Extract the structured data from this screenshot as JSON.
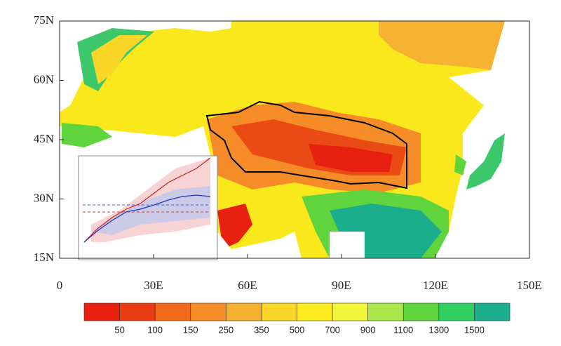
{
  "map": {
    "lat_ticks": [
      {
        "value": 75,
        "label": "75N"
      },
      {
        "value": 60,
        "label": "60N"
      },
      {
        "value": 45,
        "label": "45N"
      },
      {
        "value": 30,
        "label": "30N"
      },
      {
        "value": 15,
        "label": "15N"
      }
    ],
    "lon_ticks": [
      0,
      {
        "value": 30,
        "label": "30E"
      },
      {
        "value": 60,
        "label": "60E"
      },
      {
        "value": 90,
        "label": "90E"
      },
      {
        "value": 120,
        "label": "120E"
      },
      {
        "value": 150,
        "label": "150E"
      }
    ],
    "colorbar": {
      "levels": [
        50,
        100,
        150,
        250,
        350,
        500,
        700,
        900,
        1100,
        1300,
        1500
      ],
      "colors": [
        "#e8200f",
        "#ea3c12",
        "#f06a1a",
        "#f58c28",
        "#f6b030",
        "#f9d628",
        "#ffec1e",
        "#f2f53a",
        "#a8e64a",
        "#5fd43c",
        "#2fcf62",
        "#1aae8c"
      ]
    }
  }
}
